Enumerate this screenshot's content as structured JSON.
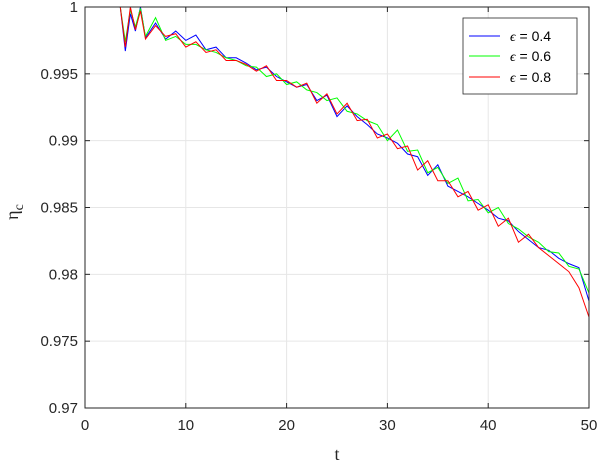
{
  "chart_data": {
    "type": "line",
    "title": "",
    "xlabel": "t",
    "ylabel": "ηc",
    "ylabel_main": "η",
    "ylabel_sub": "c",
    "xlim": [
      0,
      50
    ],
    "ylim": [
      0.97,
      1.0
    ],
    "xticks": [
      0,
      10,
      20,
      30,
      40,
      50
    ],
    "xtick_labels": [
      "0",
      "10",
      "20",
      "30",
      "40",
      "50"
    ],
    "yticks": [
      0.97,
      0.975,
      0.98,
      0.985,
      0.99,
      0.995,
      1.0
    ],
    "ytick_labels": [
      "0.97",
      "0.975",
      "0.98",
      "0.985",
      "0.99",
      "0.995",
      "1"
    ],
    "grid": true,
    "legend_position": "top-right",
    "series": [
      {
        "name": "ϵ = 0.4",
        "label_symbol": "ϵ",
        "label_rest": " = 0.4",
        "color": "#0000ff",
        "x": [
          3.5,
          4.0,
          4.5,
          5.0,
          5.5,
          6.0,
          7.0,
          8.0,
          9.0,
          10.0,
          11.0,
          12.0,
          13.0,
          14.0,
          15.0,
          16.0,
          17.0,
          18.0,
          19.0,
          20.0,
          21.0,
          22.0,
          23.0,
          24.0,
          25.0,
          26.0,
          27.0,
          28.0,
          29.0,
          30.0,
          31.0,
          32.0,
          33.0,
          34.0,
          35.0,
          36.0,
          37.0,
          38.0,
          39.0,
          40.0,
          41.0,
          42.0,
          43.0,
          44.0,
          45.0,
          46.0,
          47.0,
          48.0,
          49.0,
          50.0
        ],
        "y": [
          1.0,
          0.9967,
          0.9995,
          0.9982,
          1.0,
          0.9977,
          0.9988,
          0.9976,
          0.9982,
          0.9975,
          0.9979,
          0.9968,
          0.997,
          0.9962,
          0.9962,
          0.9958,
          0.9953,
          0.9955,
          0.9948,
          0.9944,
          0.994,
          0.9942,
          0.993,
          0.9934,
          0.9918,
          0.9926,
          0.9918,
          0.9912,
          0.9905,
          0.9902,
          0.9898,
          0.989,
          0.9888,
          0.9874,
          0.9882,
          0.9866,
          0.9862,
          0.9858,
          0.9853,
          0.9848,
          0.9842,
          0.984,
          0.9832,
          0.9826,
          0.982,
          0.9818,
          0.9812,
          0.9808,
          0.9805,
          0.978
        ]
      },
      {
        "name": "ϵ = 0.6",
        "label_symbol": "ϵ",
        "label_rest": " = 0.6",
        "color": "#00ff00",
        "x": [
          3.5,
          4.0,
          4.5,
          5.0,
          5.5,
          6.0,
          7.0,
          8.0,
          9.0,
          10.0,
          11.0,
          12.0,
          13.0,
          14.0,
          15.0,
          16.0,
          17.0,
          18.0,
          19.0,
          20.0,
          21.0,
          22.0,
          23.0,
          24.0,
          25.0,
          26.0,
          27.0,
          28.0,
          29.0,
          30.0,
          31.0,
          32.0,
          33.0,
          34.0,
          35.0,
          36.0,
          37.0,
          38.0,
          39.0,
          40.0,
          41.0,
          42.0,
          43.0,
          44.0,
          45.0,
          46.0,
          47.0,
          48.0,
          49.0,
          50.0
        ],
        "y": [
          1.0,
          0.9974,
          0.9998,
          0.9985,
          0.9999,
          0.9978,
          0.9992,
          0.9975,
          0.9978,
          0.9972,
          0.9972,
          0.9968,
          0.9966,
          0.9962,
          0.996,
          0.9956,
          0.9955,
          0.9948,
          0.995,
          0.9942,
          0.9944,
          0.9938,
          0.9936,
          0.993,
          0.9932,
          0.9922,
          0.992,
          0.9915,
          0.9912,
          0.99,
          0.9908,
          0.9892,
          0.9893,
          0.9876,
          0.988,
          0.9868,
          0.9872,
          0.9855,
          0.9856,
          0.9846,
          0.985,
          0.9838,
          0.9834,
          0.9828,
          0.9824,
          0.9817,
          0.9816,
          0.9806,
          0.9804,
          0.9786
        ]
      },
      {
        "name": "ϵ = 0.8",
        "label_symbol": "ϵ",
        "label_rest": " = 0.8",
        "color": "#ff0000",
        "x": [
          3.5,
          4.0,
          4.5,
          5.0,
          5.5,
          6.0,
          7.0,
          8.0,
          9.0,
          10.0,
          11.0,
          12.0,
          13.0,
          14.0,
          15.0,
          16.0,
          17.0,
          18.0,
          19.0,
          20.0,
          21.0,
          22.0,
          23.0,
          24.0,
          25.0,
          26.0,
          27.0,
          28.0,
          29.0,
          30.0,
          31.0,
          32.0,
          33.0,
          34.0,
          35.0,
          36.0,
          37.0,
          38.0,
          39.0,
          40.0,
          41.0,
          42.0,
          43.0,
          44.0,
          45.0,
          46.0,
          47.0,
          48.0,
          49.0,
          50.0
        ],
        "y": [
          1.0,
          0.997,
          1.0,
          0.9983,
          0.9997,
          0.9976,
          0.9986,
          0.9978,
          0.998,
          0.997,
          0.9974,
          0.9966,
          0.9968,
          0.996,
          0.996,
          0.9957,
          0.9952,
          0.9956,
          0.9945,
          0.9945,
          0.994,
          0.9943,
          0.9928,
          0.9935,
          0.992,
          0.9928,
          0.9915,
          0.9916,
          0.9902,
          0.9905,
          0.9894,
          0.9896,
          0.9878,
          0.9885,
          0.987,
          0.987,
          0.9858,
          0.9862,
          0.9848,
          0.9852,
          0.9836,
          0.9842,
          0.9824,
          0.983,
          0.982,
          0.9814,
          0.9808,
          0.9802,
          0.979,
          0.9768
        ]
      }
    ]
  }
}
